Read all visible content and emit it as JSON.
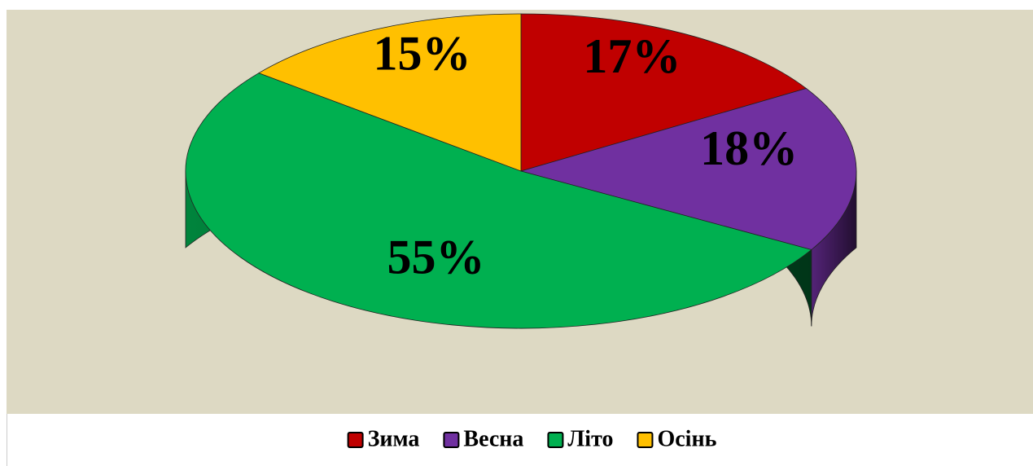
{
  "chart_data": {
    "type": "pie3d",
    "categories": [
      "Зима",
      "Весна",
      "Літо",
      "Осінь"
    ],
    "values": [
      17,
      18,
      55,
      15
    ],
    "value_labels": [
      "17%",
      "18%",
      "55%",
      "15%"
    ],
    "series": [
      {
        "colors": [
          "#c00000",
          "#7030a0",
          "#00b050",
          "#ffc000"
        ]
      }
    ],
    "legend": "bottom"
  }
}
